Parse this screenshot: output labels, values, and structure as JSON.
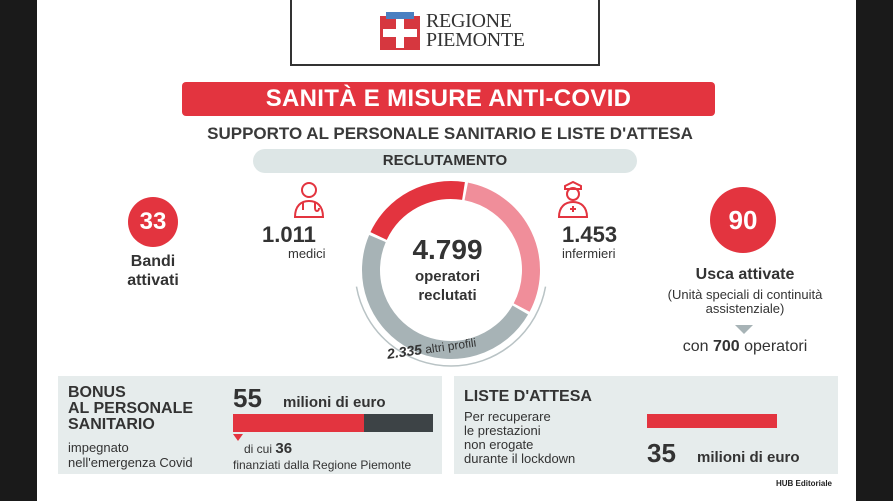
{
  "brand": {
    "line1": "REGIONE",
    "line2": "PIEMONTE",
    "icon": "piemonte-shield-icon",
    "red": "#e3343f",
    "pink": "#f08e9a",
    "gray": "#a7b3b6"
  },
  "title": "SANITÀ E MISURE ANTI-COVID",
  "subtitle": "SUPPORTO AL PERSONALE SANITARIO E LISTE D'ATTESA",
  "section": "RECLUTAMENTO",
  "bandi": {
    "value": "33",
    "label_line1": "Bandi",
    "label_line2": "attivati"
  },
  "recruitment": {
    "total": "4.799",
    "total_label_line1": "operatori",
    "total_label_line2": "reclutati",
    "medici": {
      "value": "1.011",
      "label": "medici",
      "icon": "doctor-icon",
      "count": 1011
    },
    "infermieri": {
      "value": "1.453",
      "label": "infermieri",
      "icon": "nurse-icon",
      "count": 1453
    },
    "altri": {
      "value": "2.335",
      "label": "altri profili",
      "count": 2335
    }
  },
  "usca": {
    "value": "90",
    "label": "Usca attivate",
    "sub_line1": "(Unità speciali di continuità",
    "sub_line2": "assistenziale)",
    "ops_prefix": "con",
    "ops_value": "700",
    "ops_suffix": "operatori"
  },
  "bonus": {
    "title_line1": "BONUS",
    "title_line2": "AL PERSONALE",
    "title_line3": "SANITARIO",
    "desc_line1": "impegnato",
    "desc_line2": "nell'emergenza Covid",
    "amount": "55",
    "unit": "milioni di euro",
    "part_prefix": "di cui",
    "part_amount": "36",
    "part_desc": "finanziati dalla Regione Piemonte",
    "part_fraction": 0.6545
  },
  "liste": {
    "title": "LISTE D'ATTESA",
    "desc_line1": "Per recuperare",
    "desc_line2": "le prestazioni",
    "desc_line3": "non erogate",
    "desc_line4": "durante il lockdown",
    "amount": "35",
    "unit": "milioni di euro"
  },
  "credit": "HUB Editoriale"
}
